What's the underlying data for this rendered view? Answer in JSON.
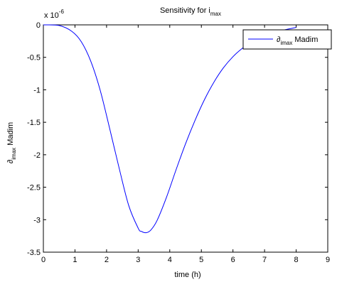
{
  "chart_data": {
    "type": "line",
    "title_main": "Sensitivity for i",
    "title_sub": "max",
    "xlabel": "time (h)",
    "ylabel_main": "∂",
    "ylabel_sub": "imax",
    "ylabel_tail": " Madim",
    "y_multiplier_prefix": "x 10",
    "y_multiplier_exp": "-6",
    "xlim": [
      0,
      9
    ],
    "ylim": [
      -3.5,
      0
    ],
    "x_ticks": [
      0,
      1,
      2,
      3,
      4,
      5,
      6,
      7,
      8,
      9
    ],
    "x_tick_labels": [
      "0",
      "1",
      "2",
      "3",
      "4",
      "5",
      "6",
      "7",
      "8",
      "9"
    ],
    "y_ticks": [
      0,
      -0.5,
      -1,
      -1.5,
      -2,
      -2.5,
      -3,
      -3.5
    ],
    "y_tick_labels": [
      "0",
      "-0.5",
      "-1",
      "-1.5",
      "-2",
      "-2.5",
      "-3",
      "-3.5"
    ],
    "legend_position": "top-right",
    "series": [
      {
        "legend_main": "∂",
        "legend_sub": "imax",
        "legend_tail": " Madim",
        "color": "#0000ff",
        "x": [
          0,
          0.5,
          0.9,
          1.2,
          1.5,
          1.8,
          2.1,
          2.4,
          2.7,
          3.0,
          3.1,
          3.25,
          3.4,
          3.6,
          3.9,
          4.2,
          4.5,
          4.8,
          5.1,
          5.4,
          5.7,
          6.0,
          6.3,
          6.6,
          6.9,
          7.2,
          7.5,
          7.8,
          8.0
        ],
        "y": [
          0,
          -0.01,
          -0.1,
          -0.26,
          -0.56,
          -1.01,
          -1.6,
          -2.21,
          -2.78,
          -3.13,
          -3.18,
          -3.2,
          -3.16,
          -3.01,
          -2.65,
          -2.23,
          -1.83,
          -1.47,
          -1.15,
          -0.88,
          -0.66,
          -0.49,
          -0.36,
          -0.26,
          -0.18,
          -0.13,
          -0.09,
          -0.06,
          -0.04
        ]
      }
    ]
  }
}
